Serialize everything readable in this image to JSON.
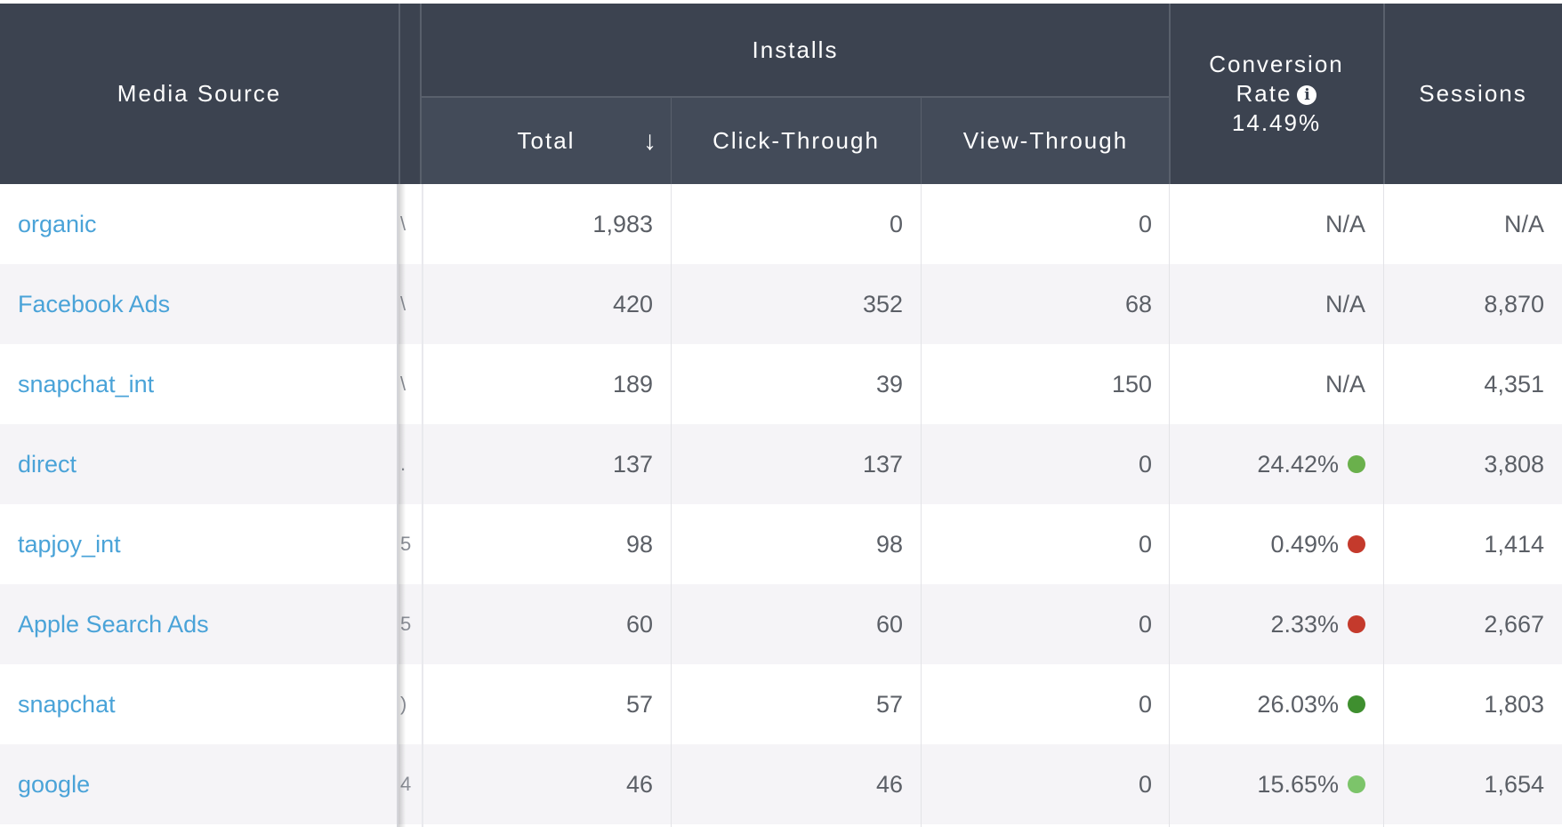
{
  "header": {
    "media_source": "Media Source",
    "installs": "Installs",
    "total": "Total",
    "sort_glyph": "↓",
    "click_through": "Click-Through",
    "view_through": "View-Through",
    "conversion_rate_line1": "Conversion",
    "conversion_rate_line2": "Rate",
    "conversion_rate_value": "14.49%",
    "info_glyph": "i",
    "sessions": "Sessions"
  },
  "colors": {
    "header_bg": "#3c4350",
    "link": "#4aa3d8",
    "good_bright": "#6ab04c",
    "good_dark": "#3f8f2f",
    "good_light": "#7cc46a",
    "bad": "#c43a2c"
  },
  "rows": [
    {
      "media": "organic",
      "cut": "\\",
      "total": "1,983",
      "click": "0",
      "view": "0",
      "conv": "N/A",
      "status": "",
      "sessions": "N/A"
    },
    {
      "media": "Facebook Ads",
      "cut": "\\",
      "total": "420",
      "click": "352",
      "view": "68",
      "conv": "N/A",
      "status": "",
      "sessions": "8,870"
    },
    {
      "media": "snapchat_int",
      "cut": "\\",
      "total": "189",
      "click": "39",
      "view": "150",
      "conv": "N/A",
      "status": "",
      "sessions": "4,351"
    },
    {
      "media": "direct",
      "cut": ".",
      "total": "137",
      "click": "137",
      "view": "0",
      "conv": "24.42%",
      "status": "good_bright",
      "sessions": "3,808"
    },
    {
      "media": "tapjoy_int",
      "cut": "5",
      "total": "98",
      "click": "98",
      "view": "0",
      "conv": "0.49%",
      "status": "bad",
      "sessions": "1,414"
    },
    {
      "media": "Apple Search Ads",
      "cut": "5",
      "total": "60",
      "click": "60",
      "view": "0",
      "conv": "2.33%",
      "status": "bad",
      "sessions": "2,667"
    },
    {
      "media": "snapchat",
      "cut": ")",
      "total": "57",
      "click": "57",
      "view": "0",
      "conv": "26.03%",
      "status": "good_dark",
      "sessions": "1,803"
    },
    {
      "media": "google",
      "cut": "4",
      "total": "46",
      "click": "46",
      "view": "0",
      "conv": "15.65%",
      "status": "good_light",
      "sessions": "1,654"
    }
  ]
}
